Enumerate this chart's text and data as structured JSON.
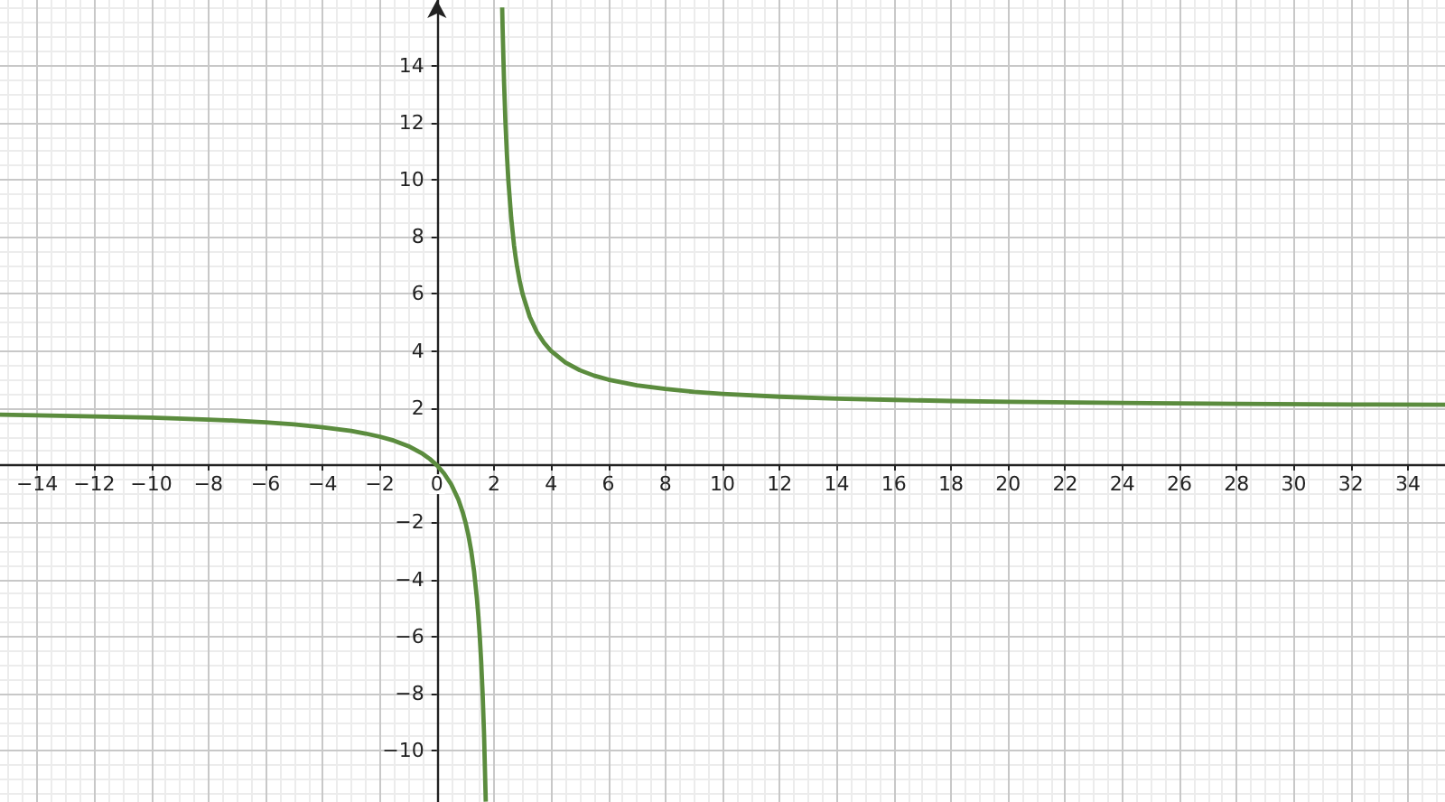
{
  "chart_data": {
    "type": "line",
    "x": [
      -15.3,
      -14,
      -12,
      -10,
      -8,
      -7,
      -6,
      -5,
      -4,
      -3,
      -2.5,
      -2,
      -1.5,
      -1,
      -0.5,
      -0.25,
      0,
      0.25,
      0.5,
      0.75,
      0.9,
      1,
      1.1,
      1.2,
      1.3,
      1.4,
      1.45,
      1.5,
      1.55,
      1.6,
      1.65,
      1.71,
      2,
      2.285,
      2.3,
      2.35,
      2.4,
      2.45,
      2.5,
      2.6,
      2.7,
      2.75,
      2.8,
      2.9,
      3,
      3.25,
      3.5,
      3.75,
      4,
      4.5,
      5,
      5.5,
      6,
      7,
      8,
      9,
      10,
      12,
      14,
      16,
      18,
      20,
      24,
      28,
      32,
      35.3
    ],
    "series": [
      {
        "color": "#5b8c3e",
        "values": [
          1.77,
          1.75,
          1.71,
          1.67,
          1.6,
          1.56,
          1.5,
          1.43,
          1.33,
          1.2,
          1.11,
          1,
          0.86,
          0.67,
          0.4,
          0.22,
          0,
          -0.29,
          -0.67,
          -1.2,
          -1.64,
          -2,
          -2.44,
          -3,
          -3.71,
          -4.67,
          -5.27,
          -6,
          -6.89,
          -8,
          -9.43,
          -11.79,
          null,
          16.04,
          15.33,
          13.43,
          12,
          10.89,
          10,
          8.67,
          7.71,
          7.33,
          7,
          6.44,
          6,
          5.2,
          4.67,
          4.29,
          4,
          3.6,
          3.33,
          3.14,
          3,
          2.8,
          2.67,
          2.57,
          2.5,
          2.4,
          2.33,
          2.29,
          2.25,
          2.22,
          2.18,
          2.15,
          2.13,
          2.12
        ]
      }
    ],
    "xlim": [
      -15.3,
      35.3
    ],
    "ylim": [
      -11.8,
      16.3
    ],
    "xticks": [
      {
        "value": -14,
        "label": "−14"
      },
      {
        "value": -12,
        "label": "−12"
      },
      {
        "value": -10,
        "label": "−10"
      },
      {
        "value": -8,
        "label": "−8"
      },
      {
        "value": -6,
        "label": "−6"
      },
      {
        "value": -4,
        "label": "−4"
      },
      {
        "value": -2,
        "label": "−2"
      },
      0,
      2,
      4,
      6,
      8,
      10,
      12,
      14,
      16,
      18,
      20,
      22,
      24,
      26,
      28,
      30,
      32,
      34
    ],
    "yticks": [
      {
        "value": -10,
        "label": "−10"
      },
      {
        "value": -8,
        "label": "−8"
      },
      {
        "value": -6,
        "label": "−6"
      },
      {
        "value": -4,
        "label": "−4"
      },
      {
        "value": -2,
        "label": "−2"
      },
      {
        "value": 0,
        "label": null
      },
      2,
      4,
      6,
      8,
      10,
      12,
      14
    ],
    "grid": true,
    "marker": "none",
    "line_style": "solid"
  }
}
